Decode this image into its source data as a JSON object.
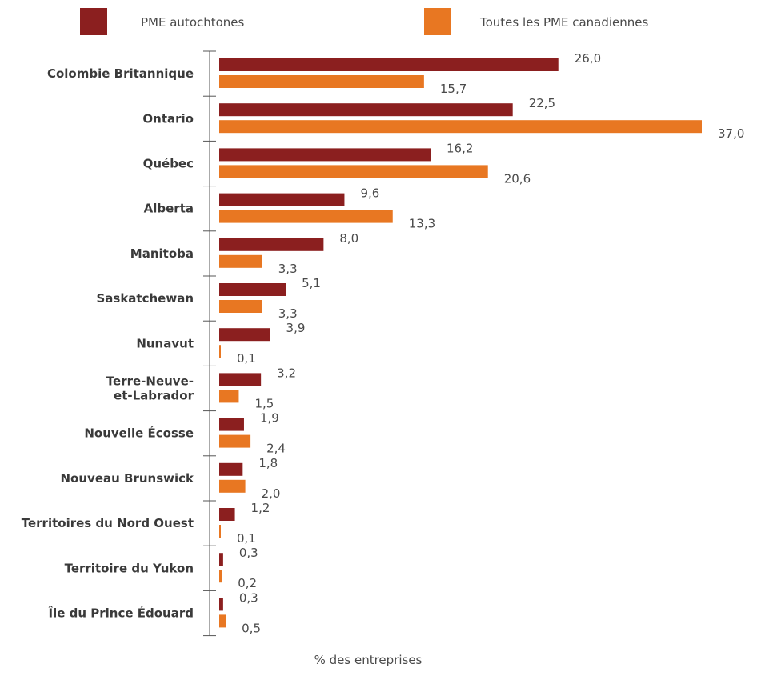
{
  "chart_data": {
    "type": "bar",
    "orientation": "horizontal",
    "categories": [
      "Colombie Britannique",
      "Ontario",
      "Québec",
      "Alberta",
      "Manitoba",
      "Saskatchewan",
      "Nunavut",
      "Terre-Neuve-\net-Labrador",
      "Nouvelle Écosse",
      "Nouveau Brunswick",
      "Territoires du Nord Ouest",
      "Territoire du Yukon",
      "Île du Prince Édouard"
    ],
    "series": [
      {
        "name": "PME autochtones",
        "color": "#8b1f1f",
        "values": [
          26.0,
          22.5,
          16.2,
          9.6,
          8.0,
          5.1,
          3.9,
          3.2,
          1.9,
          1.8,
          1.2,
          0.3,
          0.3
        ],
        "value_labels": [
          "26,0",
          "22,5",
          "16,2",
          "9,6",
          "8,0",
          "5,1",
          "3,9",
          "3,2",
          "1,9",
          "1,8",
          "1,2",
          "0,3",
          "0,3"
        ]
      },
      {
        "name": "Toutes les PME canadiennes",
        "color": "#e87722",
        "values": [
          15.7,
          37.0,
          20.6,
          13.3,
          3.3,
          3.3,
          0.1,
          1.5,
          2.4,
          2.0,
          0.1,
          0.2,
          0.5
        ],
        "value_labels": [
          "15,7",
          "37,0",
          "20,6",
          "13,3",
          "3,3",
          "3,3",
          "0,1",
          "1,5",
          "2,4",
          "2,0",
          "0,1",
          "0,2",
          "0,5"
        ]
      }
    ],
    "xlabel": "% des entreprises",
    "ylabel": "",
    "xlim": [
      0,
      37
    ],
    "grid": false,
    "legend_position": "top"
  }
}
